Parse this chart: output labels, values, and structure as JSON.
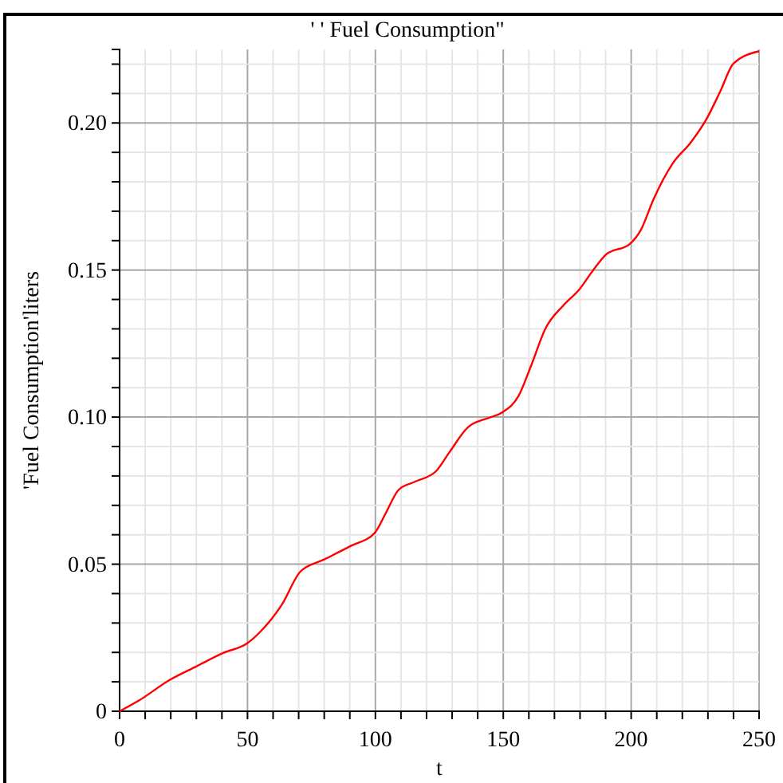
{
  "chart_data": {
    "type": "line",
    "title": "' '    Fuel Consumption\"",
    "xlabel": "t",
    "ylabel": "'Fuel Consumption'liters",
    "x": [
      0,
      7.3,
      19.7,
      30.1,
      40.5,
      49.9,
      55.1,
      63.4,
      70.7,
      80,
      90.4,
      99.8,
      103.9,
      109.1,
      115.3,
      123.7,
      128.9,
      136.1,
      144.5,
      149.6,
      155.9,
      161.1,
      166.3,
      173.5,
      179.8,
      185,
      190.2,
      199.5,
      203.7,
      208.9,
      216.2,
      223.4,
      229.6,
      234.8,
      240,
      250
    ],
    "series": [
      {
        "color": "#ff0000",
        "values": [
          0,
          0.0035,
          0.0107,
          0.0153,
          0.0198,
          0.0231,
          0.0271,
          0.0362,
          0.0475,
          0.0516,
          0.0562,
          0.0607,
          0.0671,
          0.0753,
          0.078,
          0.0816,
          0.088,
          0.0965,
          0.0998,
          0.1016,
          0.1071,
          0.118,
          0.1298,
          0.138,
          0.1435,
          0.1498,
          0.1553,
          0.1589,
          0.1635,
          0.1744,
          0.1862,
          0.1935,
          0.2016,
          0.2107,
          0.2202,
          0.2244
        ]
      }
    ],
    "xlim": [
      0,
      250
    ],
    "xticks": [
      0,
      {
        "value": 10,
        "label": null
      },
      {
        "value": 20,
        "label": null
      },
      {
        "value": 30,
        "label": null
      },
      {
        "value": 40,
        "label": null
      },
      50,
      {
        "value": 60,
        "label": null
      },
      {
        "value": 70,
        "label": null
      },
      {
        "value": 80,
        "label": null
      },
      {
        "value": 90,
        "label": null
      },
      100,
      {
        "value": 110,
        "label": null
      },
      {
        "value": 120,
        "label": null
      },
      {
        "value": 130,
        "label": null
      },
      {
        "value": 140,
        "label": null
      },
      150,
      {
        "value": 160,
        "label": null
      },
      {
        "value": 170,
        "label": null
      },
      {
        "value": 180,
        "label": null
      },
      {
        "value": 190,
        "label": null
      },
      200,
      {
        "value": 210,
        "label": null
      },
      {
        "value": 220,
        "label": null
      },
      {
        "value": 230,
        "label": null
      },
      {
        "value": 240,
        "label": null
      },
      250
    ],
    "ylim": [
      0,
      0.225
    ],
    "yticks": [
      0,
      {
        "value": 0.01,
        "label": null
      },
      {
        "value": 0.02,
        "label": null
      },
      {
        "value": 0.03,
        "label": null
      },
      {
        "value": 0.04,
        "label": null
      },
      0.05,
      {
        "value": 0.06,
        "label": null
      },
      {
        "value": 0.07,
        "label": null
      },
      {
        "value": 0.08,
        "label": null
      },
      {
        "value": 0.09,
        "label": null
      },
      {
        "value": 0.1,
        "label": "0.10"
      },
      {
        "value": 0.11,
        "label": null
      },
      {
        "value": 0.12,
        "label": null
      },
      {
        "value": 0.13,
        "label": null
      },
      {
        "value": 0.14,
        "label": null
      },
      0.15,
      {
        "value": 0.16,
        "label": null
      },
      {
        "value": 0.17,
        "label": null
      },
      {
        "value": 0.18,
        "label": null
      },
      {
        "value": 0.19,
        "label": null
      },
      {
        "value": 0.2,
        "label": "0.20"
      },
      {
        "value": 0.21,
        "label": null
      },
      {
        "value": 0.22,
        "label": null
      }
    ],
    "grid": true,
    "line_style": "solid"
  }
}
